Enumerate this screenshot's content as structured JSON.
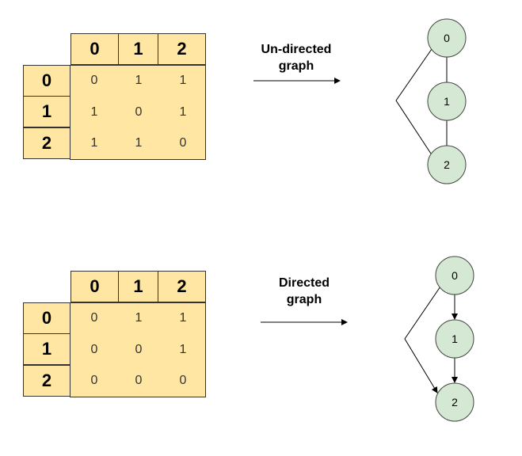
{
  "colors": {
    "matrix_fill": "#ffe6a3",
    "node_fill": "#d5e8d4",
    "node_stroke": "#444444"
  },
  "panels": [
    {
      "kind": "undirected",
      "label_line1": "Un-directed",
      "label_line2": "graph",
      "col_headers": [
        "0",
        "1",
        "2"
      ],
      "row_headers": [
        "0",
        "1",
        "2"
      ],
      "matrix": [
        [
          "0",
          "1",
          "1"
        ],
        [
          "1",
          "0",
          "1"
        ],
        [
          "1",
          "1",
          "0"
        ]
      ],
      "nodes": [
        "0",
        "1",
        "2"
      ],
      "edges": [
        [
          "0",
          "1"
        ],
        [
          "1",
          "2"
        ],
        [
          "0",
          "2"
        ]
      ]
    },
    {
      "kind": "directed",
      "label_line1": "Directed",
      "label_line2": "graph",
      "col_headers": [
        "0",
        "1",
        "2"
      ],
      "row_headers": [
        "0",
        "1",
        "2"
      ],
      "matrix": [
        [
          "0",
          "1",
          "1"
        ],
        [
          "0",
          "0",
          "1"
        ],
        [
          "0",
          "0",
          "0"
        ]
      ],
      "nodes": [
        "0",
        "1",
        "2"
      ],
      "edges": [
        [
          "0",
          "1"
        ],
        [
          "1",
          "2"
        ],
        [
          "0",
          "2"
        ]
      ]
    }
  ]
}
